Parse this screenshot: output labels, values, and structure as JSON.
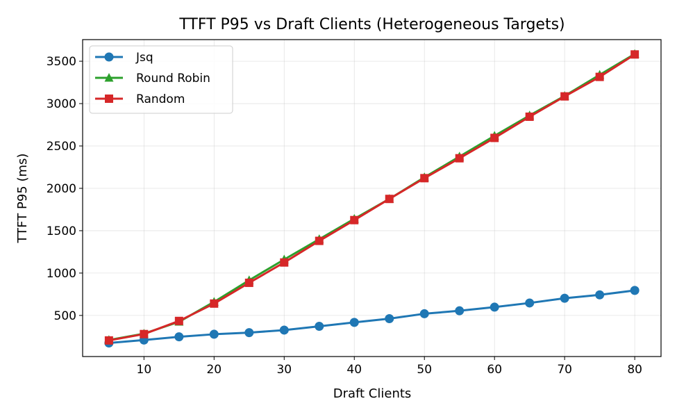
{
  "chart_data": {
    "type": "line",
    "title": "TTFT P95 vs Draft Clients (Heterogeneous Targets)",
    "xlabel": "Draft Clients",
    "ylabel": "TTFT P95 (ms)",
    "xlim": [
      1.25,
      83.75
    ],
    "ylim": [
      15,
      3755
    ],
    "xticks": [
      10,
      20,
      30,
      40,
      50,
      60,
      70,
      80
    ],
    "yticks": [
      500,
      1000,
      1500,
      2000,
      2500,
      3000,
      3500
    ],
    "grid": true,
    "legend_position": "upper-left",
    "x": [
      5,
      10,
      15,
      20,
      25,
      30,
      35,
      40,
      45,
      50,
      55,
      60,
      65,
      70,
      75,
      80
    ],
    "series": [
      {
        "name": "Jsq",
        "color": "#1f77b4",
        "marker": "circle",
        "values": [
          175,
          210,
          248,
          278,
          297,
          327,
          372,
          418,
          462,
          520,
          555,
          598,
          647,
          703,
          743,
          795
        ]
      },
      {
        "name": "Round Robin",
        "color": "#2ca02c",
        "marker": "triangle",
        "values": [
          210,
          285,
          425,
          660,
          915,
          1160,
          1400,
          1640,
          1875,
          2130,
          2375,
          2620,
          2860,
          3090,
          3340,
          3585
        ]
      },
      {
        "name": "Random",
        "color": "#d62728",
        "marker": "square",
        "values": [
          205,
          280,
          435,
          640,
          885,
          1125,
          1380,
          1625,
          1875,
          2120,
          2355,
          2595,
          2845,
          3085,
          3315,
          3580
        ]
      }
    ]
  }
}
